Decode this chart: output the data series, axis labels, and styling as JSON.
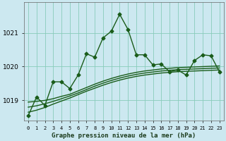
{
  "title": "Graphe pression niveau de la mer (hPa)",
  "background_color": "#cce8f0",
  "plot_bg_color": "#cce8f0",
  "grid_color": "#88ccbb",
  "line_color": "#1a5c1a",
  "x_labels": [
    "0",
    "1",
    "2",
    "3",
    "4",
    "5",
    "6",
    "7",
    "8",
    "9",
    "10",
    "11",
    "12",
    "13",
    "14",
    "15",
    "16",
    "17",
    "18",
    "19",
    "20",
    "21",
    "22",
    "23"
  ],
  "main_series": [
    1018.55,
    1019.1,
    1018.85,
    1019.55,
    1019.55,
    1019.35,
    1019.75,
    1020.38,
    1020.28,
    1020.85,
    1021.05,
    1021.55,
    1021.1,
    1020.35,
    1020.35,
    1020.05,
    1020.08,
    1019.85,
    1019.9,
    1019.75,
    1020.18,
    1020.35,
    1020.32,
    1019.85
  ],
  "smooth_line1": [
    1018.95,
    1018.97,
    1019.0,
    1019.05,
    1019.12,
    1019.18,
    1019.28,
    1019.38,
    1019.48,
    1019.57,
    1019.65,
    1019.72,
    1019.78,
    1019.83,
    1019.87,
    1019.9,
    1019.93,
    1019.95,
    1019.97,
    1019.98,
    1019.99,
    1020.0,
    1020.01,
    1020.02
  ],
  "smooth_line2": [
    1018.8,
    1018.84,
    1018.9,
    1018.97,
    1019.05,
    1019.13,
    1019.22,
    1019.32,
    1019.42,
    1019.51,
    1019.59,
    1019.66,
    1019.72,
    1019.77,
    1019.81,
    1019.84,
    1019.87,
    1019.89,
    1019.91,
    1019.92,
    1019.93,
    1019.94,
    1019.95,
    1019.96
  ],
  "smooth_line3": [
    1018.65,
    1018.71,
    1018.79,
    1018.89,
    1018.98,
    1019.07,
    1019.17,
    1019.27,
    1019.36,
    1019.45,
    1019.53,
    1019.6,
    1019.66,
    1019.71,
    1019.75,
    1019.78,
    1019.81,
    1019.83,
    1019.85,
    1019.86,
    1019.87,
    1019.88,
    1019.89,
    1019.9
  ],
  "ylim_min": 1018.4,
  "ylim_max": 1021.9,
  "yticks": [
    1019,
    1020,
    1021
  ],
  "marker_size": 2.5,
  "linewidth": 1.0
}
